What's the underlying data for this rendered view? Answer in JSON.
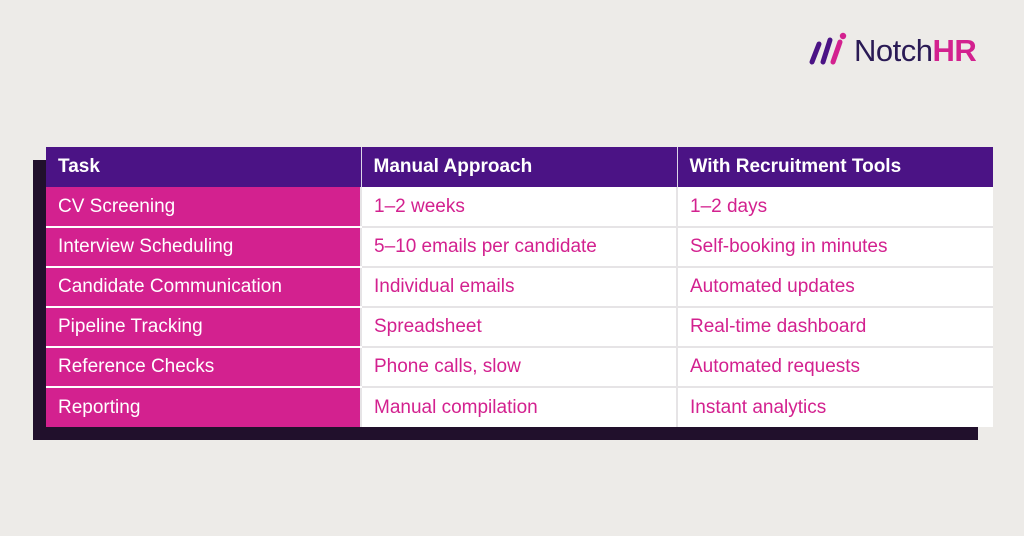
{
  "brand": {
    "logo_icon": "notchhr-logo-mark-icon",
    "name_prefix": "Notch",
    "name_suffix": "HR",
    "colors": {
      "navy": "#2a1a55",
      "magenta": "#d3218f",
      "purple": "#4b1385"
    }
  },
  "table": {
    "headers": [
      "Task",
      "Manual Approach",
      "With Recruitment Tools"
    ],
    "rows": [
      [
        "CV Screening",
        "1–2 weeks",
        "1–2 days"
      ],
      [
        "Interview Scheduling",
        "5–10 emails per candidate",
        "Self-booking in minutes"
      ],
      [
        "Candidate Communication",
        "Individual emails",
        "Automated updates"
      ],
      [
        "Pipeline Tracking",
        "Spreadsheet",
        "Real-time dashboard"
      ],
      [
        "Reference Checks",
        "Phone calls, slow",
        "Automated requests"
      ],
      [
        "Reporting",
        "Manual compilation",
        "Instant analytics"
      ]
    ]
  }
}
